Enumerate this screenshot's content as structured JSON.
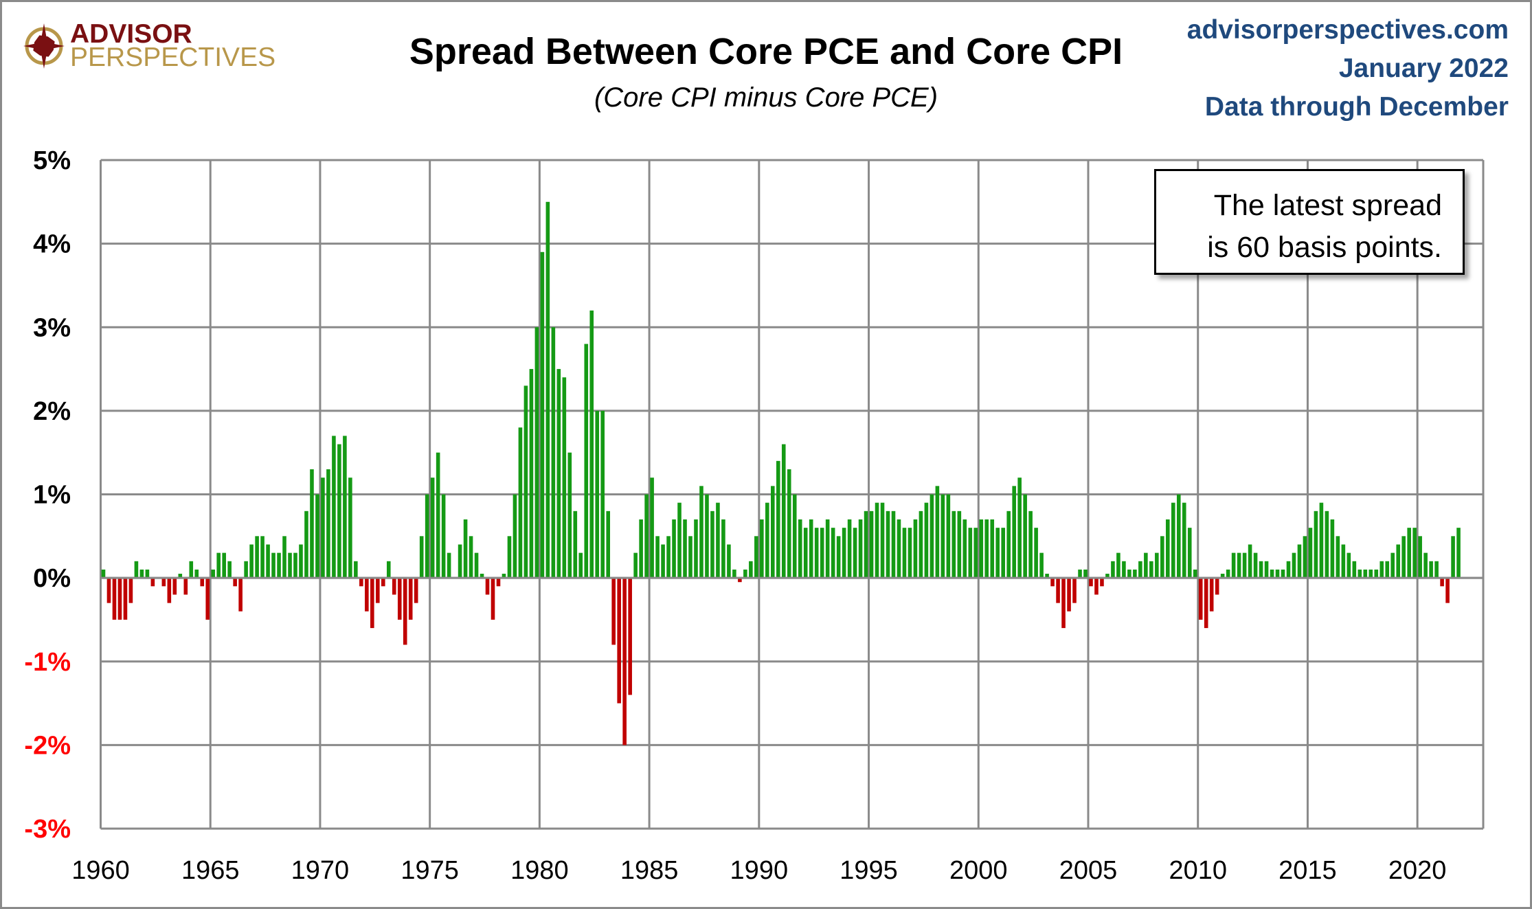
{
  "logo": {
    "line1": "ADVISOR",
    "line2": "PERSPECTIVES"
  },
  "header": {
    "site": "advisorperspectives.com",
    "date": "January 2022",
    "data_note": "Data through December"
  },
  "annotation": {
    "line1": "The latest spread",
    "line2": "is 60 basis points."
  },
  "colors": {
    "positive": "#159a15",
    "negative": "#c00000",
    "grid": "#8a8a8a",
    "header": "#1f497d",
    "negative_label": "#ff0000"
  },
  "chart_data": {
    "type": "bar",
    "title": "Spread Between Core PCE and Core CPI",
    "subtitle": "(Core CPI minus Core PCE)",
    "xlabel": "",
    "ylabel": "",
    "frequency": "quarterly (approx.)",
    "start": 1960,
    "xlim": [
      1960,
      2023
    ],
    "ylim": [
      -3,
      5
    ],
    "grid": true,
    "x_ticks": [
      "1960",
      "1965",
      "1970",
      "1975",
      "1980",
      "1985",
      "1990",
      "1995",
      "2000",
      "2005",
      "2010",
      "2015",
      "2020"
    ],
    "y_ticks": [
      {
        "v": 5,
        "label": "5%"
      },
      {
        "v": 4,
        "label": "4%"
      },
      {
        "v": 3,
        "label": "3%"
      },
      {
        "v": 2,
        "label": "2%"
      },
      {
        "v": 1,
        "label": "1%"
      },
      {
        "v": 0,
        "label": "0%"
      },
      {
        "v": -1,
        "label": "-1%"
      },
      {
        "v": -2,
        "label": "-2%"
      },
      {
        "v": -3,
        "label": "-3%"
      }
    ],
    "values": [
      0.1,
      -0.3,
      -0.5,
      -0.5,
      -0.5,
      -0.3,
      0.2,
      0.1,
      0.1,
      -0.1,
      0.0,
      -0.1,
      -0.3,
      -0.2,
      0.05,
      -0.2,
      0.2,
      0.1,
      -0.1,
      -0.5,
      0.1,
      0.3,
      0.3,
      0.2,
      -0.1,
      -0.4,
      0.2,
      0.4,
      0.5,
      0.5,
      0.4,
      0.3,
      0.3,
      0.5,
      0.3,
      0.3,
      0.4,
      0.8,
      1.3,
      1.0,
      1.2,
      1.3,
      1.7,
      1.6,
      1.7,
      1.2,
      0.2,
      -0.1,
      -0.4,
      -0.6,
      -0.3,
      -0.1,
      0.2,
      -0.2,
      -0.5,
      -0.8,
      -0.5,
      -0.3,
      0.5,
      1.0,
      1.2,
      1.5,
      1.0,
      0.3,
      0.0,
      0.4,
      0.7,
      0.5,
      0.3,
      0.05,
      -0.2,
      -0.5,
      -0.1,
      0.05,
      0.5,
      1.0,
      1.8,
      2.3,
      2.5,
      3.0,
      3.9,
      4.5,
      3.0,
      2.5,
      2.4,
      1.5,
      0.8,
      0.3,
      2.8,
      3.2,
      2.0,
      2.0,
      0.8,
      -0.8,
      -1.5,
      -2.0,
      -1.4,
      0.3,
      0.7,
      1.0,
      1.2,
      0.5,
      0.4,
      0.5,
      0.7,
      0.9,
      0.7,
      0.5,
      0.7,
      1.1,
      1.0,
      0.8,
      0.9,
      0.7,
      0.4,
      0.1,
      -0.05,
      0.1,
      0.2,
      0.5,
      0.7,
      0.9,
      1.1,
      1.4,
      1.6,
      1.3,
      1.0,
      0.7,
      0.6,
      0.7,
      0.6,
      0.6,
      0.7,
      0.6,
      0.5,
      0.6,
      0.7,
      0.6,
      0.7,
      0.8,
      0.8,
      0.9,
      0.9,
      0.8,
      0.8,
      0.7,
      0.6,
      0.6,
      0.7,
      0.8,
      0.9,
      1.0,
      1.1,
      1.0,
      1.0,
      0.8,
      0.8,
      0.7,
      0.6,
      0.6,
      0.7,
      0.7,
      0.7,
      0.6,
      0.6,
      0.8,
      1.1,
      1.2,
      1.0,
      0.8,
      0.6,
      0.3,
      0.05,
      -0.1,
      -0.3,
      -0.6,
      -0.4,
      -0.3,
      0.1,
      0.1,
      -0.1,
      -0.2,
      -0.1,
      0.05,
      0.2,
      0.3,
      0.2,
      0.1,
      0.1,
      0.2,
      0.3,
      0.2,
      0.3,
      0.5,
      0.7,
      0.9,
      1.0,
      0.9,
      0.6,
      0.1,
      -0.5,
      -0.6,
      -0.4,
      -0.2,
      0.05,
      0.1,
      0.3,
      0.3,
      0.3,
      0.4,
      0.3,
      0.2,
      0.2,
      0.1,
      0.1,
      0.1,
      0.2,
      0.3,
      0.4,
      0.5,
      0.6,
      0.8,
      0.9,
      0.8,
      0.7,
      0.5,
      0.4,
      0.3,
      0.2,
      0.1,
      0.1,
      0.1,
      0.1,
      0.2,
      0.2,
      0.3,
      0.4,
      0.5,
      0.6,
      0.6,
      0.5,
      0.3,
      0.2,
      0.2,
      -0.1,
      -0.3,
      0.5,
      0.6
    ]
  }
}
